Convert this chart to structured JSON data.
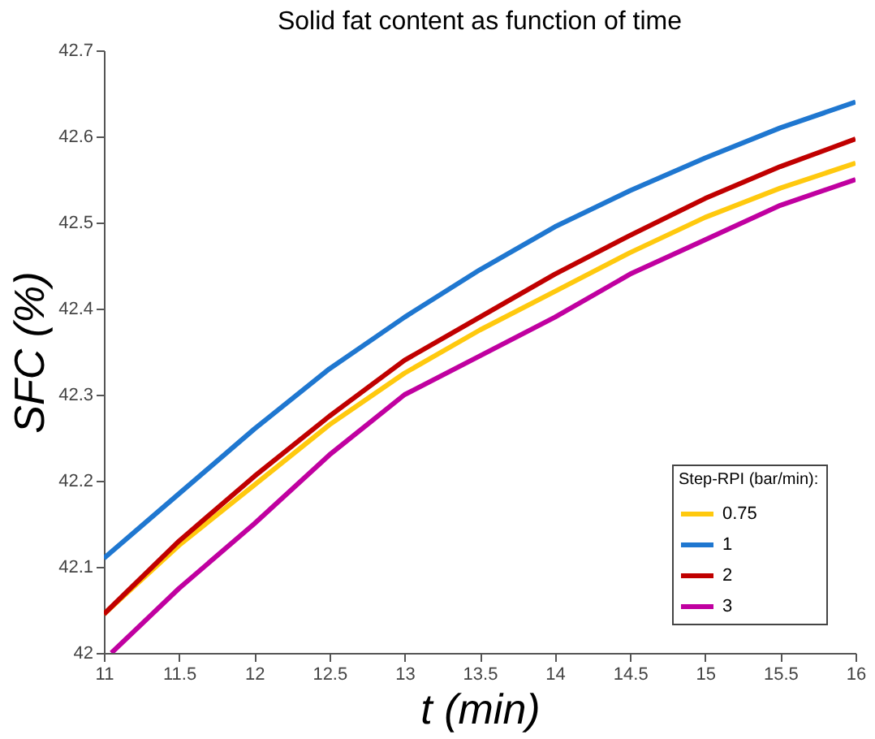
{
  "chart_data": {
    "type": "line",
    "title": "Solid fat content as function of time",
    "xlabel": "t  (min)",
    "ylabel": "SFC  (%)",
    "legend_title": "Step-RPI (bar/min):",
    "xlim": [
      11,
      16
    ],
    "xticks": [
      11,
      11.5,
      12,
      12.5,
      13,
      13.5,
      14,
      14.5,
      15,
      15.5,
      16
    ],
    "ylim": [
      42,
      42.7
    ],
    "yticks": [
      42,
      42.1,
      42.2,
      42.3,
      42.4,
      42.5,
      42.6,
      42.7
    ],
    "x": [
      11,
      11.5,
      12,
      12.5,
      13,
      13.5,
      14,
      14.5,
      15,
      15.5,
      16
    ],
    "series": [
      {
        "name": "0.75",
        "color": "#ffc90e",
        "values": [
          42.045,
          42.125,
          42.195,
          42.265,
          42.325,
          42.375,
          42.42,
          42.465,
          42.506,
          42.54,
          42.569
        ]
      },
      {
        "name": "1",
        "color": "#1f77d0",
        "values": [
          42.11,
          42.185,
          42.26,
          42.33,
          42.39,
          42.445,
          42.495,
          42.537,
          42.575,
          42.61,
          42.64
        ]
      },
      {
        "name": "2",
        "color": "#c00000",
        "values": [
          42.045,
          42.13,
          42.205,
          42.275,
          42.34,
          42.39,
          42.44,
          42.485,
          42.528,
          42.565,
          42.597
        ]
      },
      {
        "name": "3",
        "color": "#c000a0",
        "x": [
          11.05,
          11.5,
          12,
          12.5,
          13,
          13.5,
          14,
          14.5,
          15,
          15.5,
          16
        ],
        "values": [
          42.0,
          42.075,
          42.15,
          42.23,
          42.3,
          42.345,
          42.39,
          42.44,
          42.48,
          42.52,
          42.55
        ]
      }
    ],
    "grid": false,
    "legend": "bottom right",
    "line_style": "solid",
    "marker": "none"
  }
}
